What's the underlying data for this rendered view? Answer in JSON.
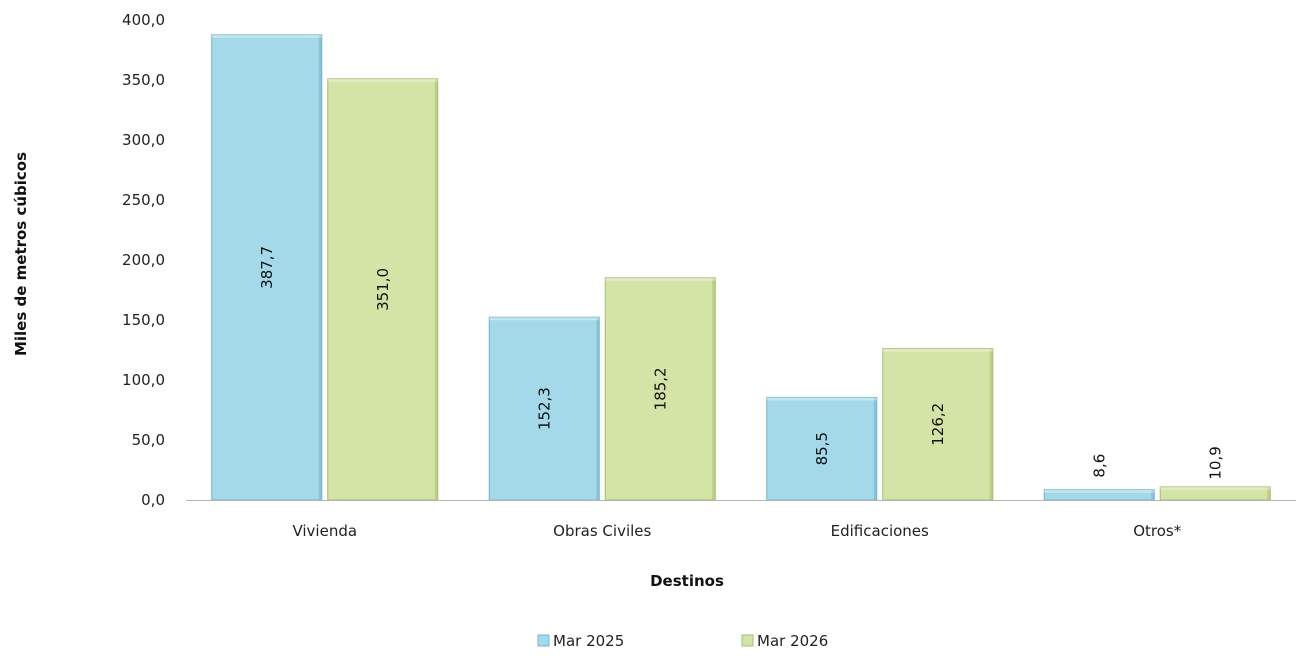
{
  "chart_data": {
    "type": "bar",
    "categories": [
      "Vivienda",
      "Obras Civiles",
      "Edificaciones",
      "Otros*"
    ],
    "series": [
      {
        "name": "Mar 2025",
        "values": [
          387.7,
          152.3,
          85.5,
          8.6
        ],
        "labels": [
          "387,7",
          "152,3",
          "85,5",
          "8,6"
        ],
        "color": "#a3d9e8",
        "edge": "#6fb6ca"
      },
      {
        "name": "Mar 2026",
        "values": [
          351.0,
          185.2,
          126.2,
          10.9
        ],
        "labels": [
          "351,0",
          "185,2",
          "126,2",
          "10,9"
        ],
        "color": "#d4e4a6",
        "edge": "#a6bd6c"
      }
    ],
    "xlabel": "Destinos",
    "ylabel": "Miles de metros cúbicos",
    "ylim": [
      0,
      400
    ],
    "yticks": [
      0,
      50,
      100,
      150,
      200,
      250,
      300,
      350,
      400
    ],
    "ytick_labels": [
      "0,0",
      "50,0",
      "100,0",
      "150,0",
      "200,0",
      "250,0",
      "300,0",
      "350,0",
      "400,0"
    ],
    "grid": false,
    "legend_position": "bottom"
  }
}
